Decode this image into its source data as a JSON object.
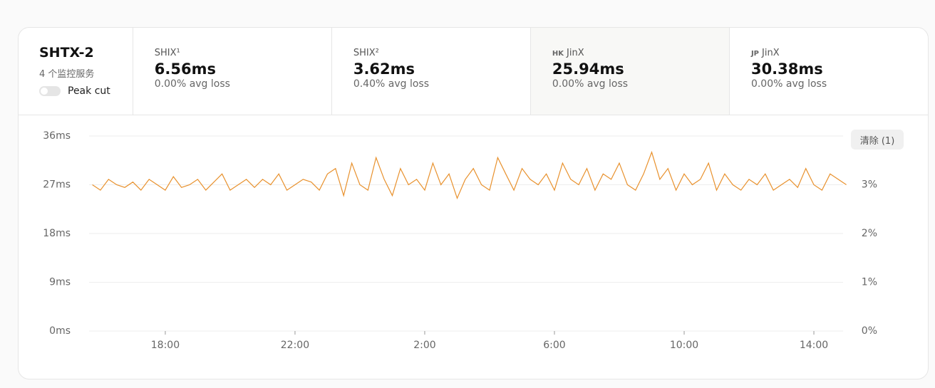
{
  "header": {
    "title": "SHTX-2",
    "subtitle": "4 个监控服务",
    "toggle_label": "Peak cut"
  },
  "monitors": [
    {
      "name": "SHIX¹",
      "latency": "6.56ms",
      "loss": "0.00% avg loss"
    },
    {
      "name": "SHIX²",
      "latency": "3.62ms",
      "loss": "0.40% avg loss"
    },
    {
      "prefix": "HK",
      "name": "JinX",
      "latency": "25.94ms",
      "loss": "0.00% avg loss"
    },
    {
      "prefix": "JP",
      "name": "JinX",
      "latency": "30.38ms",
      "loss": "0.00% avg loss"
    }
  ],
  "clear_button": "清除 (1)",
  "chart_data": {
    "type": "line",
    "x": [
      15.75,
      16,
      16.25,
      16.5,
      16.75,
      17,
      17.25,
      17.5,
      17.75,
      18,
      18.25,
      18.5,
      18.75,
      19,
      19.25,
      19.5,
      19.75,
      20,
      20.25,
      20.5,
      20.75,
      21,
      21.25,
      21.5,
      21.75,
      22,
      22.25,
      22.5,
      22.75,
      23,
      23.25,
      23.5,
      23.75,
      24,
      24.25,
      24.5,
      24.75,
      25,
      25.25,
      25.5,
      25.75,
      26,
      26.25,
      26.5,
      26.75,
      27,
      27.25,
      27.5,
      27.75,
      28,
      28.25,
      28.5,
      28.75,
      29,
      29.25,
      29.5,
      29.75,
      30,
      30.25,
      30.5,
      30.75,
      31,
      31.25,
      31.5,
      31.75,
      32,
      32.25,
      32.5,
      32.75,
      33,
      33.25,
      33.5,
      33.75,
      34,
      34.25,
      34.5,
      34.75,
      35,
      35.25,
      35.5,
      35.75,
      36,
      36.25,
      36.5,
      36.75,
      37,
      37.25,
      37.5,
      37.75,
      38,
      38.25,
      38.5,
      38.75,
      39
    ],
    "series": [
      {
        "color": "#e8912d",
        "values": [
          27,
          26,
          28,
          27,
          26.5,
          27.5,
          26,
          28,
          27,
          26,
          28.5,
          26.5,
          27,
          28,
          26,
          27.5,
          29,
          26,
          27,
          28,
          26.5,
          28,
          27,
          29,
          26,
          27,
          28,
          27.5,
          26,
          29,
          30,
          25,
          31,
          27,
          26,
          32,
          28,
          25,
          30,
          27,
          28,
          26,
          31,
          27,
          29,
          24.5,
          28,
          30,
          27,
          26,
          32,
          29,
          26,
          30,
          28,
          27,
          29,
          26,
          31,
          28,
          27,
          30,
          26,
          29,
          28,
          31,
          27,
          26,
          29,
          33,
          28,
          30,
          26,
          29,
          27,
          28,
          31,
          26,
          29,
          27,
          26,
          28,
          27,
          29,
          26,
          27,
          28,
          26.5,
          30,
          27,
          26,
          29,
          28,
          27
        ]
      }
    ],
    "xlim": [
      15.65,
      38.9
    ],
    "xticks": [
      {
        "value": 18,
        "label": "18:00"
      },
      {
        "value": 22,
        "label": "22:00"
      },
      {
        "value": 26,
        "label": "2:00"
      },
      {
        "value": 30,
        "label": "6:00"
      },
      {
        "value": 34,
        "label": "10:00"
      },
      {
        "value": 38,
        "label": "14:00"
      }
    ],
    "ylim": [
      0,
      36
    ],
    "yticks": [
      {
        "value": 0,
        "label": "0ms"
      },
      {
        "value": 9,
        "label": "9ms"
      },
      {
        "value": 18,
        "label": "18ms"
      },
      {
        "value": 27,
        "label": "27ms"
      },
      {
        "value": 36,
        "label": "36ms"
      }
    ],
    "y2lim": [
      0,
      4
    ],
    "y2ticks": [
      {
        "value": 0,
        "label": "0%"
      },
      {
        "value": 1,
        "label": "1%"
      },
      {
        "value": 2,
        "label": "2%"
      },
      {
        "value": 3,
        "label": "3%"
      }
    ],
    "grid": true
  }
}
